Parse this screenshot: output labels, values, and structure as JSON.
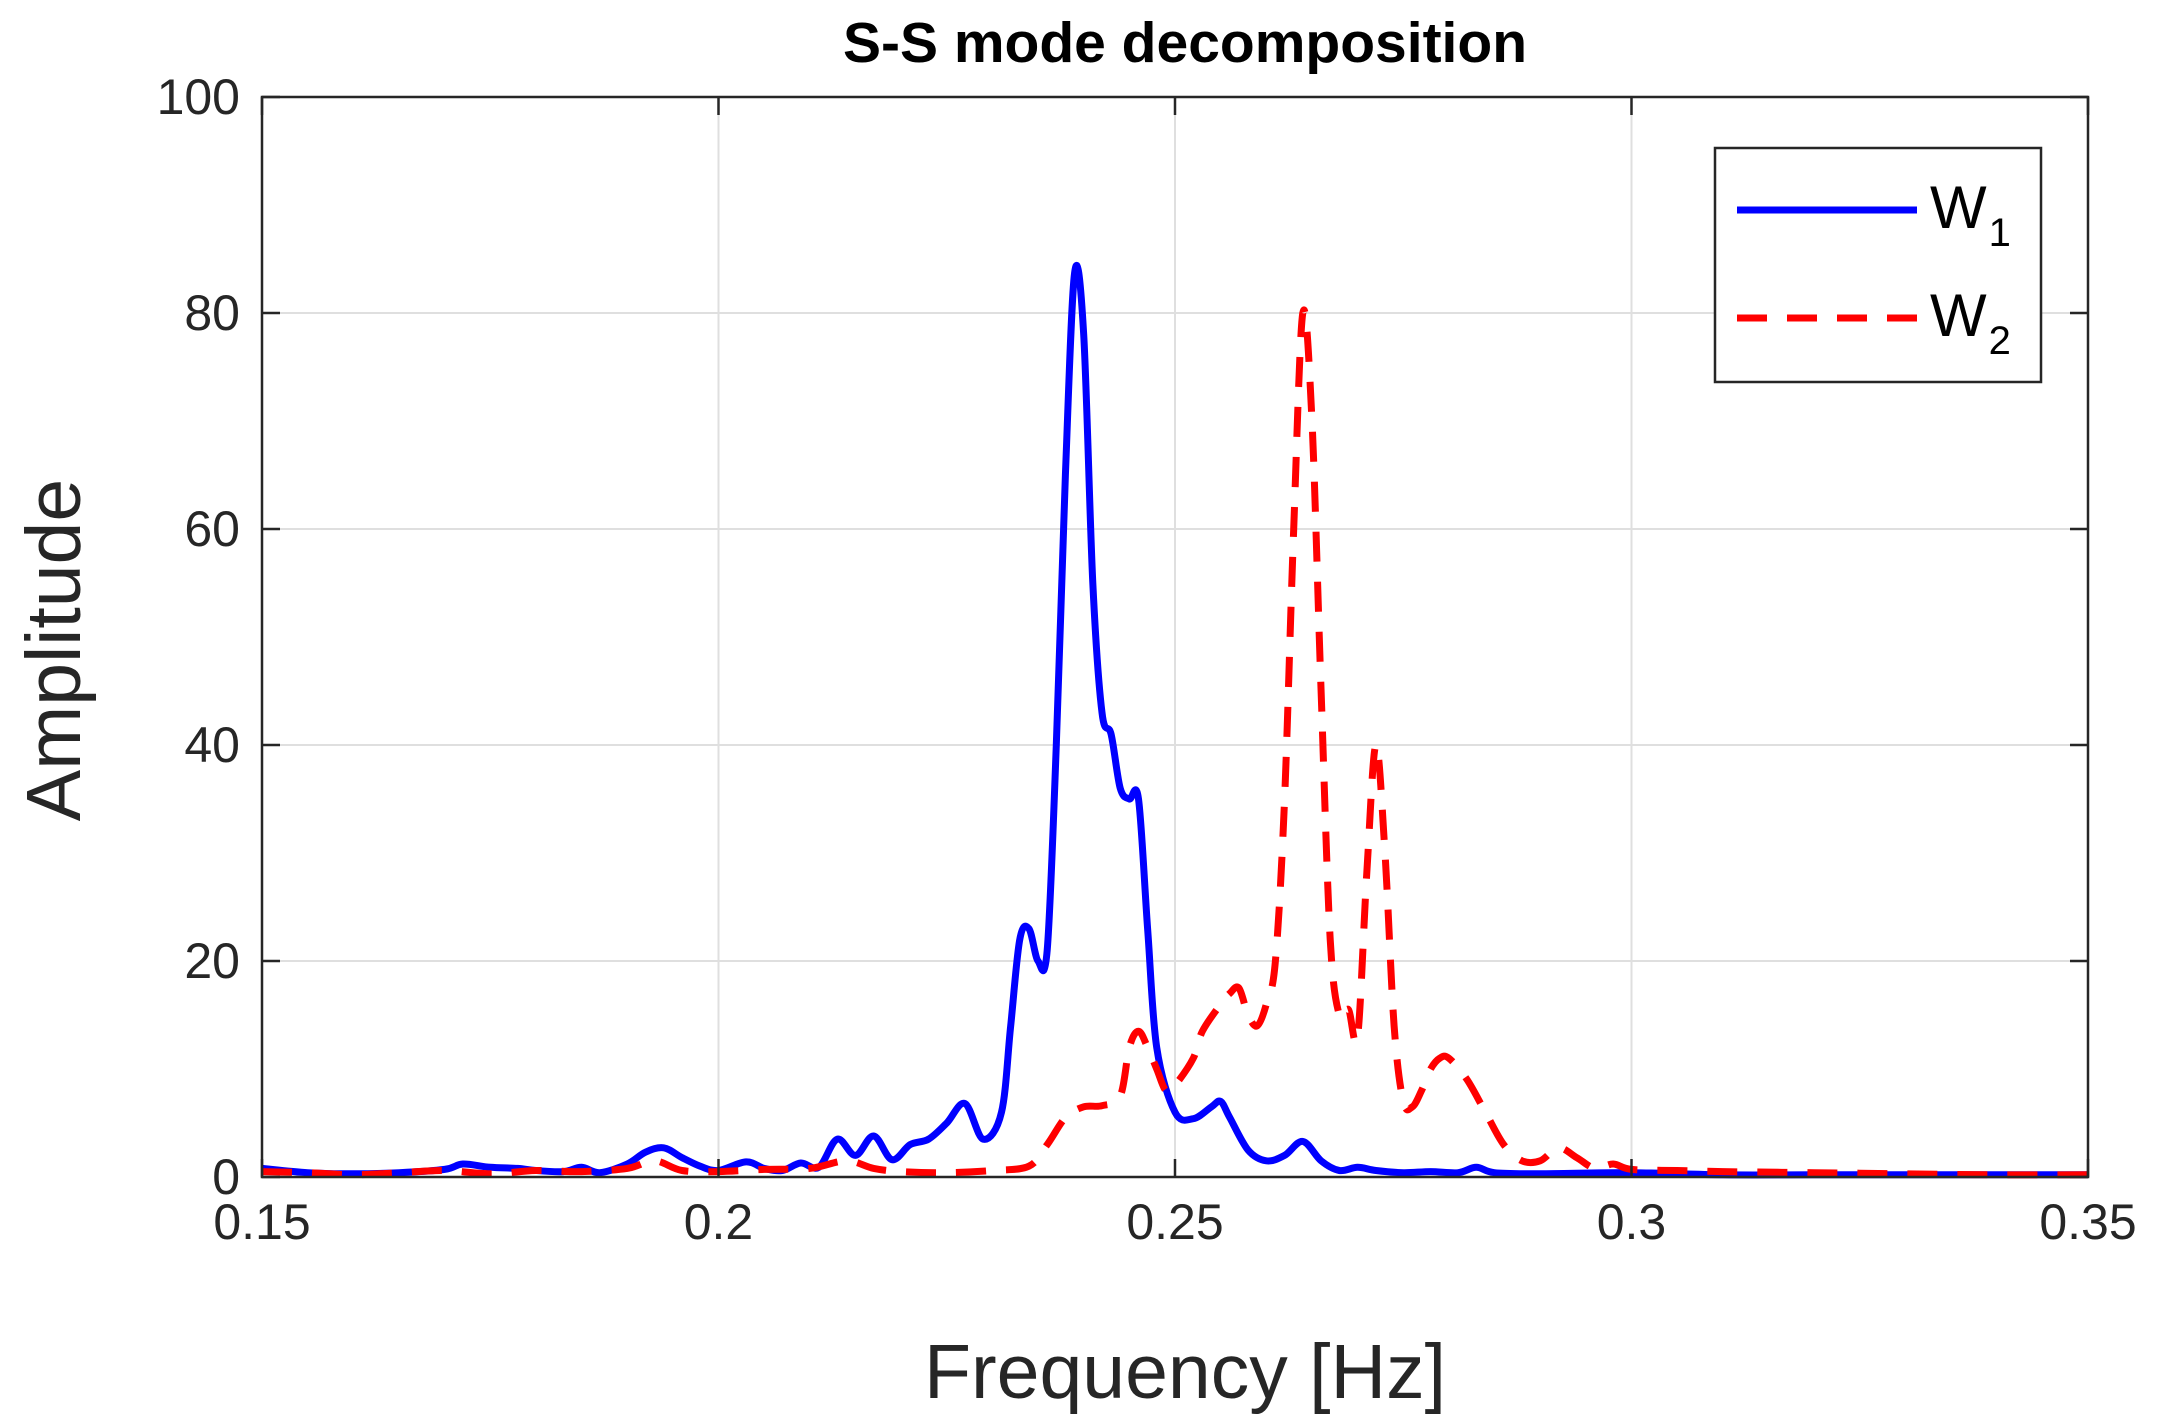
{
  "chart_data": {
    "type": "line",
    "title": "S-S mode decomposition",
    "xlabel": "Frequency [Hz]",
    "ylabel": "Amplitude",
    "xlim": [
      0.15,
      0.35
    ],
    "ylim": [
      0,
      100
    ],
    "xticks": [
      0.15,
      0.2,
      0.25,
      0.3,
      0.35
    ],
    "xtick_labels": [
      "0.15",
      "0.2",
      "0.25",
      "0.3",
      "0.35"
    ],
    "yticks": [
      0,
      20,
      40,
      60,
      80,
      100
    ],
    "ytick_labels": [
      "0",
      "20",
      "40",
      "60",
      "80",
      "100"
    ],
    "grid": true,
    "legend_position": "top-right",
    "series": [
      {
        "name": "W",
        "name_subscript": "1",
        "color": "#0000ff",
        "style": "solid",
        "points": [
          [
            0.15,
            0.8
          ],
          [
            0.155,
            0.4
          ],
          [
            0.16,
            0.3
          ],
          [
            0.165,
            0.4
          ],
          [
            0.17,
            0.7
          ],
          [
            0.172,
            1.2
          ],
          [
            0.175,
            0.9
          ],
          [
            0.178,
            0.8
          ],
          [
            0.18,
            0.6
          ],
          [
            0.183,
            0.5
          ],
          [
            0.185,
            0.9
          ],
          [
            0.187,
            0.4
          ],
          [
            0.19,
            1.2
          ],
          [
            0.192,
            2.3
          ],
          [
            0.194,
            2.7
          ],
          [
            0.196,
            1.8
          ],
          [
            0.198,
            1.0
          ],
          [
            0.2,
            0.6
          ],
          [
            0.203,
            1.4
          ],
          [
            0.205,
            0.8
          ],
          [
            0.207,
            0.6
          ],
          [
            0.209,
            1.3
          ],
          [
            0.211,
            0.9
          ],
          [
            0.213,
            3.5
          ],
          [
            0.215,
            2.0
          ],
          [
            0.217,
            3.8
          ],
          [
            0.219,
            1.6
          ],
          [
            0.221,
            3.0
          ],
          [
            0.223,
            3.5
          ],
          [
            0.225,
            5.0
          ],
          [
            0.227,
            6.8
          ],
          [
            0.229,
            3.5
          ],
          [
            0.231,
            6.0
          ],
          [
            0.232,
            14.0
          ],
          [
            0.233,
            22.0
          ],
          [
            0.234,
            23.0
          ],
          [
            0.235,
            20.0
          ],
          [
            0.236,
            21.0
          ],
          [
            0.237,
            40.0
          ],
          [
            0.238,
            65.0
          ],
          [
            0.239,
            83.7
          ],
          [
            0.24,
            78.0
          ],
          [
            0.241,
            55.0
          ],
          [
            0.242,
            43.0
          ],
          [
            0.243,
            41.0
          ],
          [
            0.244,
            36.0
          ],
          [
            0.245,
            35.0
          ],
          [
            0.246,
            35.0
          ],
          [
            0.247,
            23.0
          ],
          [
            0.248,
            12.0
          ],
          [
            0.25,
            6.0
          ],
          [
            0.252,
            5.4
          ],
          [
            0.254,
            6.5
          ],
          [
            0.255,
            7.0
          ],
          [
            0.256,
            5.5
          ],
          [
            0.258,
            2.5
          ],
          [
            0.26,
            1.5
          ],
          [
            0.262,
            2.0
          ],
          [
            0.264,
            3.3
          ],
          [
            0.266,
            1.5
          ],
          [
            0.268,
            0.6
          ],
          [
            0.27,
            0.9
          ],
          [
            0.272,
            0.6
          ],
          [
            0.275,
            0.4
          ],
          [
            0.278,
            0.5
          ],
          [
            0.281,
            0.4
          ],
          [
            0.283,
            0.9
          ],
          [
            0.285,
            0.4
          ],
          [
            0.29,
            0.3
          ],
          [
            0.3,
            0.4
          ],
          [
            0.31,
            0.2
          ],
          [
            0.32,
            0.2
          ],
          [
            0.33,
            0.2
          ],
          [
            0.34,
            0.2
          ],
          [
            0.35,
            0.2
          ]
        ]
      },
      {
        "name": "W",
        "name_subscript": "2",
        "color": "#ff0000",
        "style": "dashed",
        "points": [
          [
            0.15,
            0.5
          ],
          [
            0.155,
            0.4
          ],
          [
            0.16,
            0.2
          ],
          [
            0.165,
            0.4
          ],
          [
            0.17,
            0.6
          ],
          [
            0.175,
            0.3
          ],
          [
            0.18,
            0.6
          ],
          [
            0.185,
            0.5
          ],
          [
            0.19,
            0.8
          ],
          [
            0.193,
            1.5
          ],
          [
            0.196,
            0.6
          ],
          [
            0.2,
            0.5
          ],
          [
            0.205,
            0.7
          ],
          [
            0.21,
            0.8
          ],
          [
            0.214,
            1.5
          ],
          [
            0.217,
            0.8
          ],
          [
            0.22,
            0.5
          ],
          [
            0.225,
            0.4
          ],
          [
            0.23,
            0.6
          ],
          [
            0.234,
            1.0
          ],
          [
            0.236,
            3.0
          ],
          [
            0.238,
            5.5
          ],
          [
            0.24,
            6.5
          ],
          [
            0.242,
            6.6
          ],
          [
            0.244,
            7.5
          ],
          [
            0.245,
            12.0
          ],
          [
            0.246,
            13.5
          ],
          [
            0.247,
            12.0
          ],
          [
            0.248,
            10.0
          ],
          [
            0.249,
            8.0
          ],
          [
            0.25,
            8.5
          ],
          [
            0.252,
            11.0
          ],
          [
            0.253,
            13.5
          ],
          [
            0.255,
            16.0
          ],
          [
            0.256,
            17.0
          ],
          [
            0.257,
            17.5
          ],
          [
            0.258,
            15.0
          ],
          [
            0.259,
            14.0
          ],
          [
            0.26,
            16.0
          ],
          [
            0.261,
            20.0
          ],
          [
            0.262,
            35.0
          ],
          [
            0.263,
            60.0
          ],
          [
            0.264,
            80.0
          ],
          [
            0.265,
            70.0
          ],
          [
            0.266,
            45.0
          ],
          [
            0.267,
            22.0
          ],
          [
            0.268,
            15.0
          ],
          [
            0.269,
            15.5
          ],
          [
            0.27,
            13.0
          ],
          [
            0.271,
            28.0
          ],
          [
            0.272,
            40.0
          ],
          [
            0.273,
            30.0
          ],
          [
            0.274,
            14.0
          ],
          [
            0.275,
            7.0
          ],
          [
            0.276,
            6.5
          ],
          [
            0.277,
            8.0
          ],
          [
            0.278,
            10.0
          ],
          [
            0.279,
            11.0
          ],
          [
            0.28,
            11.0
          ],
          [
            0.282,
            9.0
          ],
          [
            0.284,
            6.0
          ],
          [
            0.286,
            3.0
          ],
          [
            0.288,
            1.5
          ],
          [
            0.29,
            1.5
          ],
          [
            0.292,
            2.7
          ],
          [
            0.294,
            1.8
          ],
          [
            0.296,
            0.8
          ],
          [
            0.298,
            1.2
          ],
          [
            0.3,
            0.7
          ],
          [
            0.305,
            0.6
          ],
          [
            0.31,
            0.5
          ],
          [
            0.32,
            0.4
          ],
          [
            0.33,
            0.3
          ],
          [
            0.34,
            0.2
          ],
          [
            0.35,
            0.2
          ]
        ]
      }
    ]
  }
}
